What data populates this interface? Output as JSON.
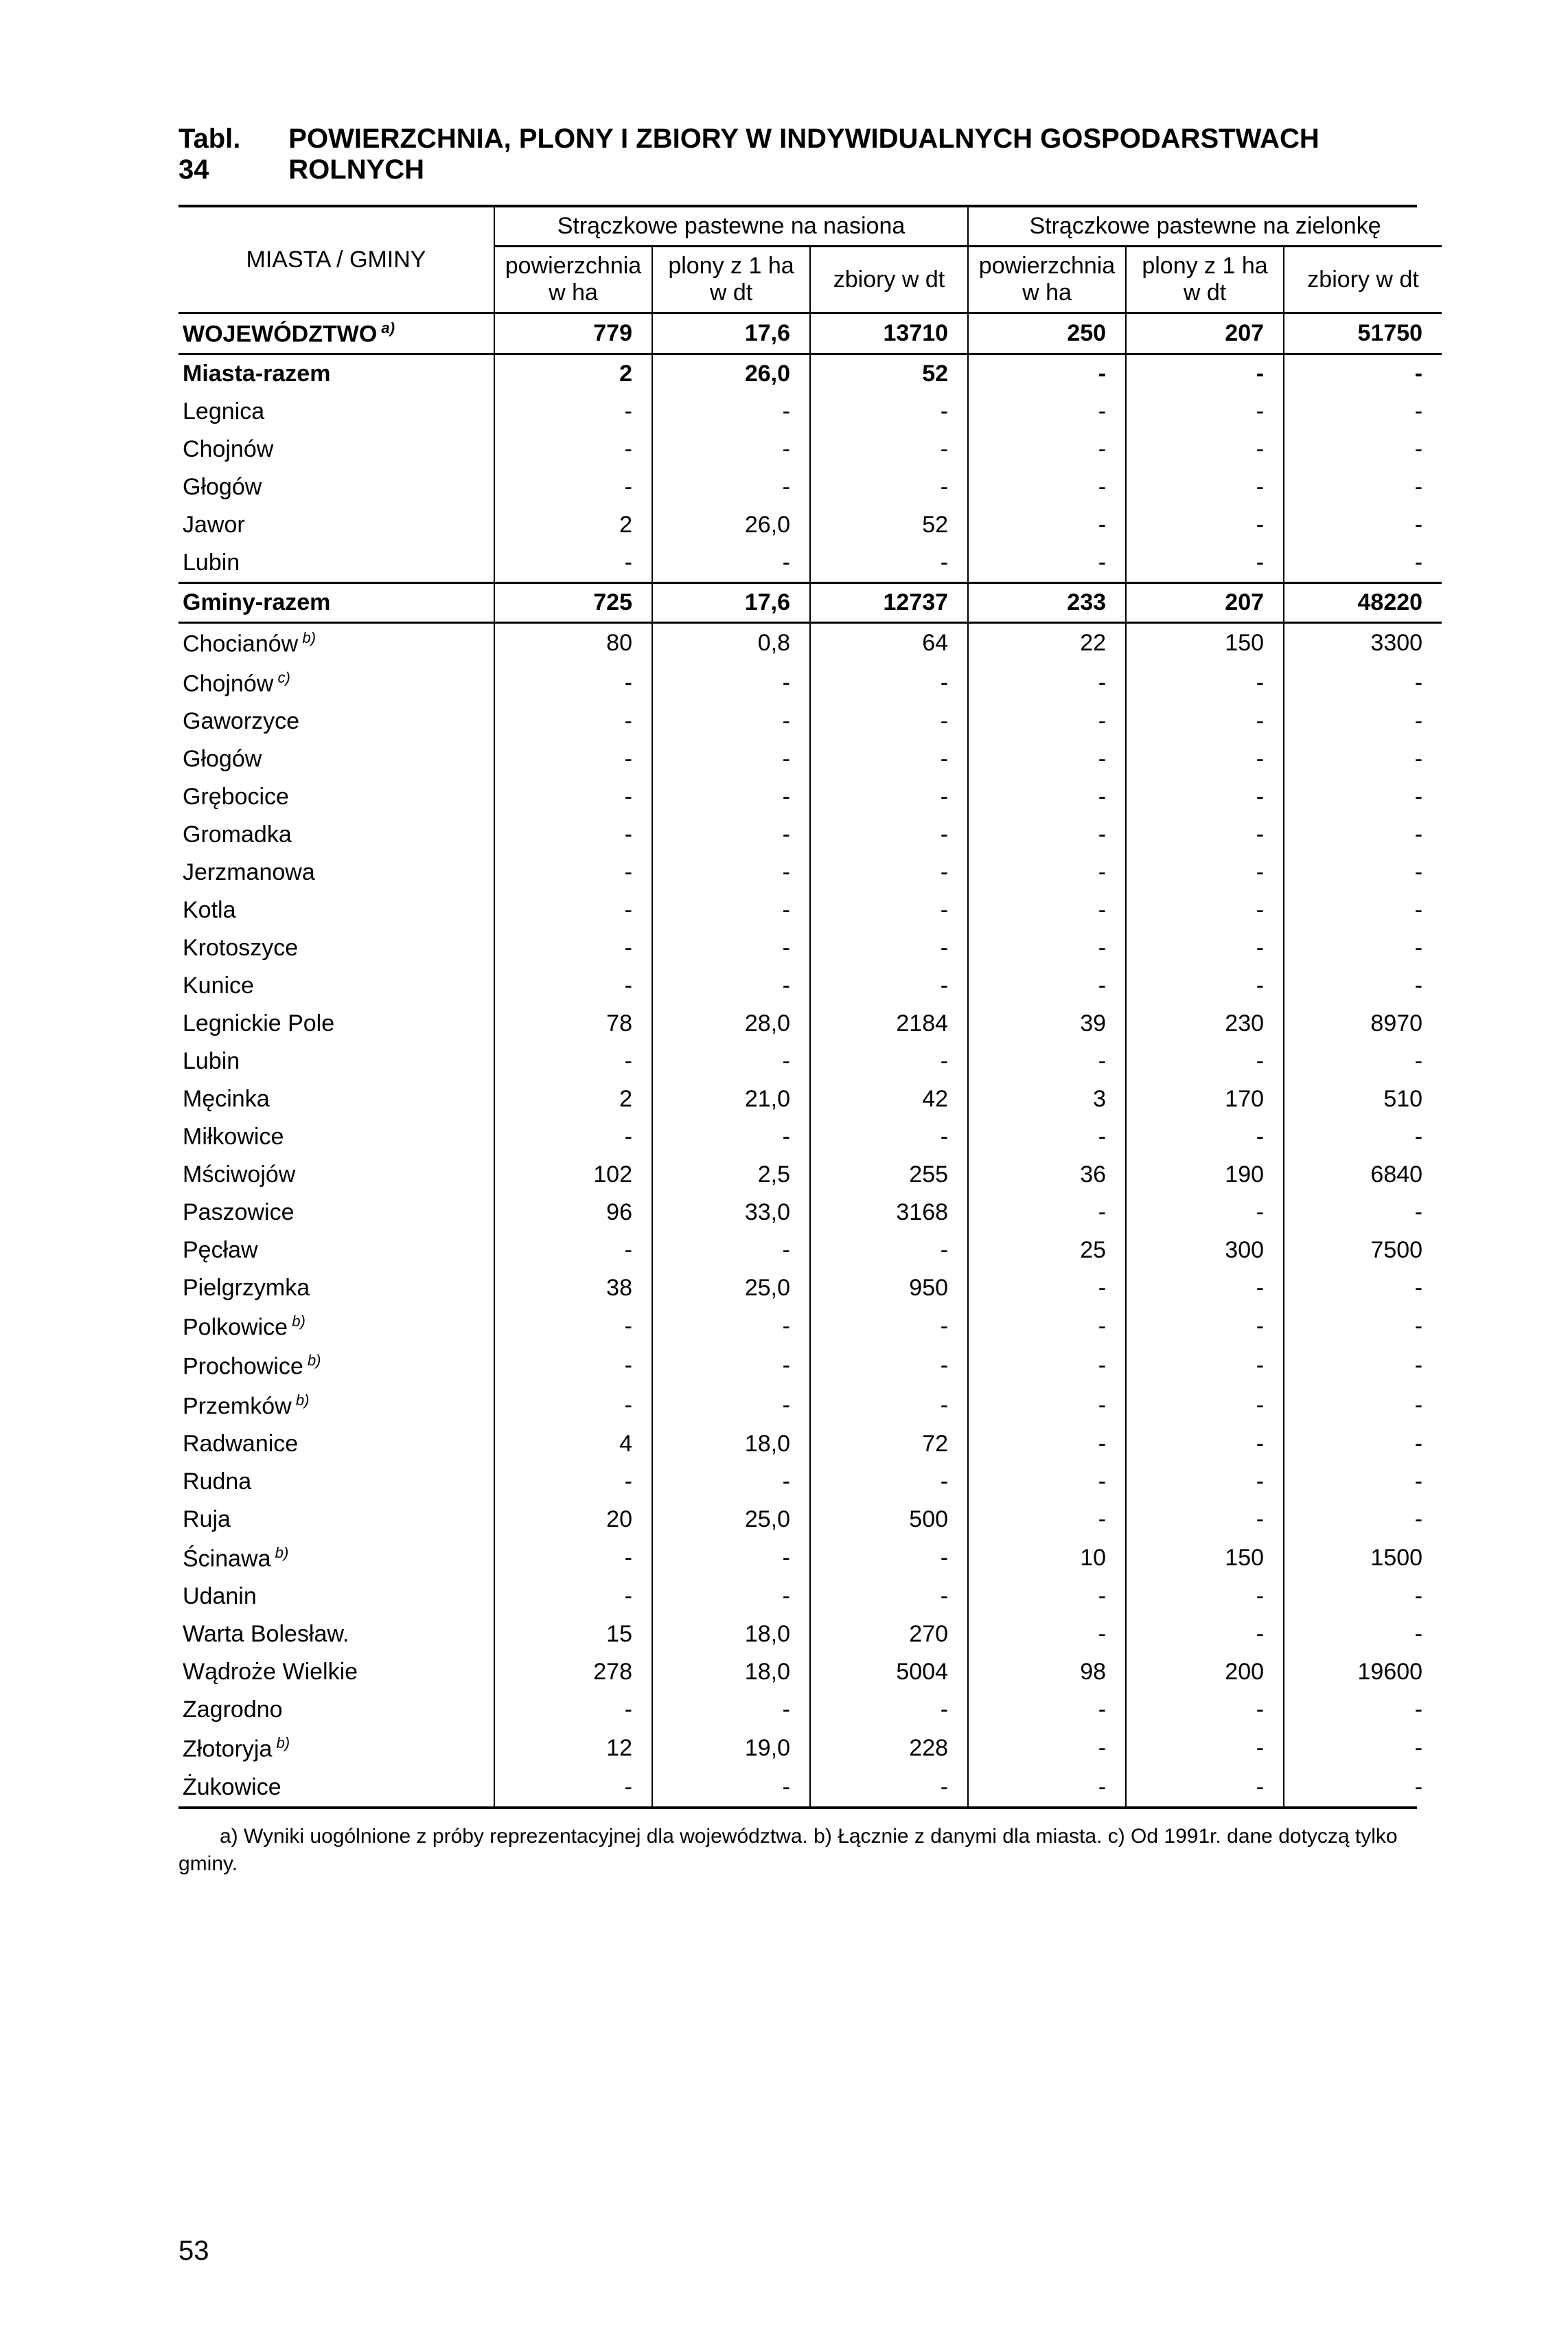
{
  "title_prefix": "Tabl. 34",
  "title": "POWIERZCHNIA, PLONY I ZBIORY W INDYWIDUALNYCH GOSPODARSTWACH ROLNYCH",
  "row_header": "MIASTA / GMINY",
  "group1": "Strączkowe pastewne na nasiona",
  "group2": "Strączkowe pastewne na zielonkę",
  "sub1": "powierzchnia w ha",
  "sub2": "plony z 1 ha w dt",
  "sub3": "zbiory w dt",
  "sub4": "powierzchnia w ha",
  "sub5": "plony z 1 ha w dt",
  "sub6": "zbiory w dt",
  "rows": [
    {
      "label": "WOJEWÓDZTWO",
      "sup": "a)",
      "v": [
        "779",
        "17,6",
        "13710",
        "250",
        "207",
        "51750"
      ],
      "bold": true,
      "sep": true
    },
    {
      "label": "Miasta-razem",
      "v": [
        "2",
        "26,0",
        "52",
        "-",
        "-",
        "-"
      ],
      "bold": true,
      "sep": false,
      "septop": true
    },
    {
      "label": "Legnica",
      "v": [
        "-",
        "-",
        "-",
        "-",
        "-",
        "-"
      ]
    },
    {
      "label": "Chojnów",
      "v": [
        "-",
        "-",
        "-",
        "-",
        "-",
        "-"
      ]
    },
    {
      "label": "Głogów",
      "v": [
        "-",
        "-",
        "-",
        "-",
        "-",
        "-"
      ]
    },
    {
      "label": "Jawor",
      "v": [
        "2",
        "26,0",
        "52",
        "-",
        "-",
        "-"
      ]
    },
    {
      "label": "Lubin",
      "v": [
        "-",
        "-",
        "-",
        "-",
        "-",
        "-"
      ],
      "sep": true
    },
    {
      "label": "Gminy-razem",
      "v": [
        "725",
        "17,6",
        "12737",
        "233",
        "207",
        "48220"
      ],
      "bold": true,
      "sep": true
    },
    {
      "label": "Chocianów",
      "sup": "b)",
      "v": [
        "80",
        "0,8",
        "64",
        "22",
        "150",
        "3300"
      ]
    },
    {
      "label": "Chojnów",
      "sup": "c)",
      "v": [
        "-",
        "-",
        "-",
        "-",
        "-",
        "-"
      ]
    },
    {
      "label": "Gaworzyce",
      "v": [
        "-",
        "-",
        "-",
        "-",
        "-",
        "-"
      ]
    },
    {
      "label": "Głogów",
      "v": [
        "-",
        "-",
        "-",
        "-",
        "-",
        "-"
      ]
    },
    {
      "label": "Grębocice",
      "v": [
        "-",
        "-",
        "-",
        "-",
        "-",
        "-"
      ]
    },
    {
      "label": "Gromadka",
      "v": [
        "-",
        "-",
        "-",
        "-",
        "-",
        "-"
      ]
    },
    {
      "label": "Jerzmanowa",
      "v": [
        "-",
        "-",
        "-",
        "-",
        "-",
        "-"
      ]
    },
    {
      "label": "Kotla",
      "v": [
        "-",
        "-",
        "-",
        "-",
        "-",
        "-"
      ]
    },
    {
      "label": "Krotoszyce",
      "v": [
        "-",
        "-",
        "-",
        "-",
        "-",
        "-"
      ]
    },
    {
      "label": "Kunice",
      "v": [
        "-",
        "-",
        "-",
        "-",
        "-",
        "-"
      ]
    },
    {
      "label": "Legnickie Pole",
      "v": [
        "78",
        "28,0",
        "2184",
        "39",
        "230",
        "8970"
      ]
    },
    {
      "label": "Lubin",
      "v": [
        "-",
        "-",
        "-",
        "-",
        "-",
        "-"
      ]
    },
    {
      "label": "Męcinka",
      "v": [
        "2",
        "21,0",
        "42",
        "3",
        "170",
        "510"
      ]
    },
    {
      "label": "Miłkowice",
      "v": [
        "-",
        "-",
        "-",
        "-",
        "-",
        "-"
      ]
    },
    {
      "label": "Mściwojów",
      "v": [
        "102",
        "2,5",
        "255",
        "36",
        "190",
        "6840"
      ]
    },
    {
      "label": "Paszowice",
      "v": [
        "96",
        "33,0",
        "3168",
        "-",
        "-",
        "-"
      ]
    },
    {
      "label": "Pęcław",
      "v": [
        "-",
        "-",
        "-",
        "25",
        "300",
        "7500"
      ]
    },
    {
      "label": "Pielgrzymka",
      "v": [
        "38",
        "25,0",
        "950",
        "-",
        "-",
        "-"
      ]
    },
    {
      "label": "Polkowice",
      "sup": "b)",
      "v": [
        "-",
        "-",
        "-",
        "-",
        "-",
        "-"
      ]
    },
    {
      "label": "Prochowice",
      "sup": "b)",
      "v": [
        "-",
        "-",
        "-",
        "-",
        "-",
        "-"
      ]
    },
    {
      "label": "Przemków",
      "sup": "b)",
      "v": [
        "-",
        "-",
        "-",
        "-",
        "-",
        "-"
      ]
    },
    {
      "label": "Radwanice",
      "v": [
        "4",
        "18,0",
        "72",
        "-",
        "-",
        "-"
      ]
    },
    {
      "label": "Rudna",
      "v": [
        "-",
        "-",
        "-",
        "-",
        "-",
        "-"
      ]
    },
    {
      "label": "Ruja",
      "v": [
        "20",
        "25,0",
        "500",
        "-",
        "-",
        "-"
      ]
    },
    {
      "label": "Ścinawa",
      "sup": "b)",
      "v": [
        "-",
        "-",
        "-",
        "10",
        "150",
        "1500"
      ]
    },
    {
      "label": "Udanin",
      "v": [
        "-",
        "-",
        "-",
        "-",
        "-",
        "-"
      ]
    },
    {
      "label": "Warta Bolesław.",
      "v": [
        "15",
        "18,0",
        "270",
        "-",
        "-",
        "-"
      ]
    },
    {
      "label": "Wądroże Wielkie",
      "v": [
        "278",
        "18,0",
        "5004",
        "98",
        "200",
        "19600"
      ]
    },
    {
      "label": "Zagrodno",
      "v": [
        "-",
        "-",
        "-",
        "-",
        "-",
        "-"
      ]
    },
    {
      "label": "Złotoryja",
      "sup": "b)",
      "v": [
        "12",
        "19,0",
        "228",
        "-",
        "-",
        "-"
      ]
    },
    {
      "label": "Żukowice",
      "v": [
        "-",
        "-",
        "-",
        "-",
        "-",
        "-"
      ]
    }
  ],
  "footnote": "a) Wyniki uogólnione z próby reprezentacyjnej dla województwa. b) Łącznie z danymi dla miasta. c) Od 1991r. dane dotyczą tylko gminy.",
  "page_number": "53"
}
